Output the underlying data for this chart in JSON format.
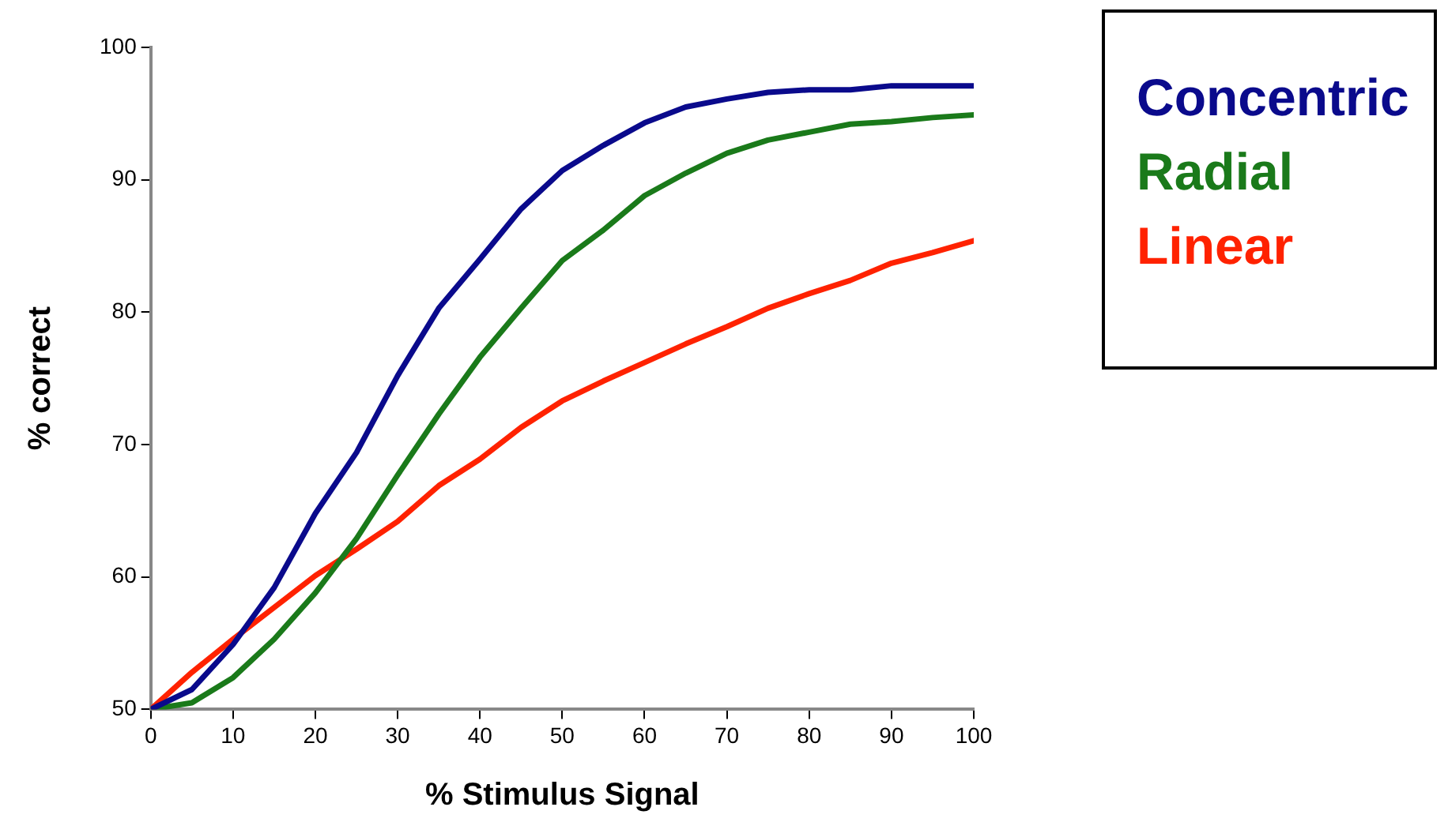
{
  "chart_data": {
    "type": "line",
    "xlabel": "% Stimulus Signal",
    "ylabel": "% correct",
    "x": [
      0,
      5,
      10,
      15,
      20,
      25,
      30,
      35,
      40,
      45,
      50,
      55,
      60,
      65,
      70,
      75,
      80,
      85,
      90,
      95,
      100
    ],
    "xlim": [
      0,
      100
    ],
    "xticks": [
      0,
      10,
      20,
      30,
      40,
      50,
      60,
      70,
      80,
      90,
      100
    ],
    "ylim": [
      50,
      100
    ],
    "yticks": [
      50,
      60,
      70,
      80,
      90,
      100
    ],
    "grid": false,
    "legend": "right",
    "marker": "none",
    "line_style": "solid",
    "series": [
      {
        "name": "Concentric",
        "color": "#0a0a8c",
        "values": [
          50,
          51.5,
          54.9,
          59.2,
          64.8,
          69.4,
          75.2,
          80.3,
          84,
          87.8,
          90.7,
          92.6,
          94.3,
          95.5,
          96.1,
          96.6,
          96.8,
          96.8,
          97.1,
          97.1,
          97.1
        ]
      },
      {
        "name": "Radial",
        "color": "#1a7a1a",
        "values": [
          50,
          50.5,
          52.4,
          55.3,
          58.8,
          62.9,
          67.7,
          72.3,
          76.6,
          80.3,
          83.9,
          86.2,
          88.8,
          90.5,
          92,
          93,
          93.6,
          94.2,
          94.4,
          94.7,
          94.9
        ]
      },
      {
        "name": "Linear",
        "color": "#ff2200",
        "values": [
          50,
          52.8,
          55.3,
          57.7,
          60.1,
          62.1,
          64.2,
          66.9,
          68.9,
          71.3,
          73.3,
          74.8,
          76.2,
          77.6,
          78.9,
          80.3,
          81.4,
          82.4,
          83.7,
          84.5,
          85.4
        ]
      }
    ]
  }
}
